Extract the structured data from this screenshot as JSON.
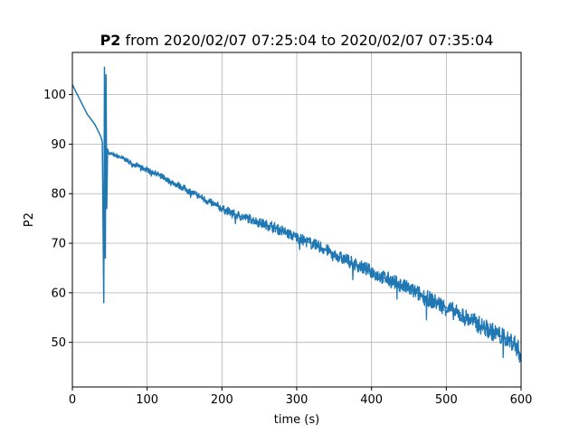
{
  "chart_data": {
    "type": "line",
    "title_bold": "P2",
    "title_rest": " from 2020/02/07 07:25:04 to 2020/02/07 07:35:04",
    "xlabel": "time (s)",
    "ylabel": "P2",
    "xlim": [
      0,
      600
    ],
    "ylim": [
      41,
      108.5
    ],
    "x_ticks": [
      0,
      100,
      200,
      300,
      400,
      500,
      600
    ],
    "y_ticks": [
      50,
      60,
      70,
      80,
      90,
      100
    ],
    "grid": true,
    "legend": "none",
    "line_color": "#1f77b4",
    "series": [
      {
        "x": [
          0,
          5,
          10,
          15,
          20,
          25,
          30,
          35,
          38,
          40,
          42,
          43,
          44,
          45,
          46,
          47,
          48,
          49,
          50,
          55,
          60,
          65,
          70,
          75,
          80,
          90,
          100,
          110,
          120,
          130,
          140,
          150,
          160,
          170,
          180,
          190,
          200,
          210,
          220,
          230,
          240,
          250,
          260,
          270,
          280,
          290,
          300,
          310,
          320,
          330,
          340,
          350,
          360,
          370,
          380,
          390,
          400,
          410,
          420,
          430,
          440,
          450,
          460,
          470,
          480,
          490,
          500,
          510,
          520,
          530,
          540,
          550,
          560,
          570,
          580,
          590,
          595,
          600
        ],
        "y": [
          102,
          100.5,
          99,
          97.5,
          96,
          95,
          94,
          92.5,
          91.5,
          90.5,
          58,
          105.5,
          67,
          104,
          77,
          89,
          88.5,
          88,
          88.2,
          87.8,
          87.5,
          87.3,
          87,
          86.5,
          86,
          85.5,
          84.8,
          84.2,
          83.5,
          82.5,
          81.8,
          81,
          80.2,
          79.5,
          78.5,
          77.8,
          77,
          76.3,
          75.7,
          75.2,
          74.8,
          74.2,
          73.7,
          73.2,
          72.5,
          71.8,
          71.2,
          70.5,
          70,
          69.3,
          68.6,
          67.8,
          67,
          66.4,
          65.6,
          65,
          64.3,
          63.5,
          62.8,
          62.2,
          61.5,
          60.8,
          60,
          59.3,
          58.5,
          57.8,
          57,
          56.2,
          55.4,
          54.7,
          53.9,
          53,
          52.3,
          51.5,
          50.7,
          50,
          49,
          47
        ]
      }
    ]
  }
}
